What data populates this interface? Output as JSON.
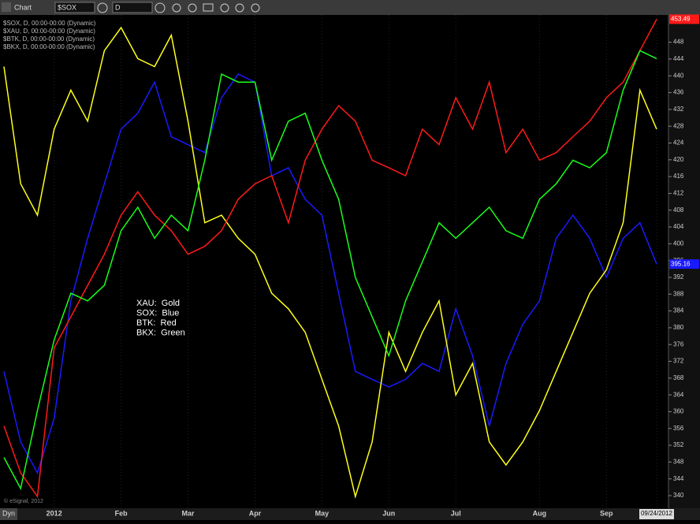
{
  "toolbar": {
    "window_title": "Chart",
    "symbol": "$SOX",
    "interval": "D"
  },
  "footer": {
    "mode": "Dyn",
    "copyright": "© eSignal, 2012"
  },
  "chart_data": {
    "type": "line",
    "categories": [
      null,
      null,
      null,
      "2012",
      null,
      null,
      null,
      "Feb",
      null,
      null,
      null,
      "Mar",
      null,
      null,
      null,
      "Apr",
      null,
      null,
      null,
      "May",
      null,
      null,
      null,
      "Jun",
      null,
      null,
      null,
      "Jul",
      null,
      null,
      null,
      null,
      "Aug",
      null,
      null,
      null,
      "Sep",
      null,
      null,
      "09/24/2012"
    ],
    "series": [
      {
        "name": "$SOX, D, 00:00-00:00 (Dynamic)",
        "color": "#1a1aff",
        "values": [
          369.6,
          352.8,
          345.4,
          358.4,
          386.4,
          401.3,
          414.3,
          427.3,
          431.1,
          438.5,
          425.5,
          423.6,
          421.7,
          434.8,
          440.4,
          438.5,
          416.2,
          418.1,
          410.6,
          406.8,
          388.2,
          369.6,
          367.7,
          365.9,
          367.7,
          371.5,
          369.6,
          384.5,
          373.3,
          356.6,
          371.5,
          380.8,
          386.4,
          401.3,
          406.8,
          401.3,
          392,
          401.3,
          405,
          395.16
        ]
      },
      {
        "name": "$XAU, D, 00:00-00:00 (Dynamic)",
        "color": "#ffff1a",
        "values": [
          442.2,
          414.3,
          406.8,
          427.3,
          436.6,
          429.2,
          446,
          451.5,
          444.1,
          442.2,
          449.7,
          429.2,
          405,
          406.8,
          401.3,
          397.5,
          388.2,
          384.5,
          378.9,
          367.7,
          356.6,
          339.8,
          352.8,
          378.9,
          369.6,
          378.9,
          386.4,
          364,
          371.5,
          352.8,
          347.3,
          352.8,
          360.3,
          369.6,
          378.9,
          388.2,
          393.8,
          405,
          436.6,
          427.3
        ]
      },
      {
        "name": "$BTK, D, 00:00-00:00 (Dynamic)",
        "color": "#ff1a1a",
        "values": [
          356.6,
          345.4,
          339.8,
          375.2,
          382.6,
          390.1,
          397.5,
          406.8,
          412.4,
          406.8,
          403.1,
          397.5,
          399.4,
          403.1,
          410.6,
          414.3,
          416.2,
          405,
          419.9,
          427.3,
          432.9,
          429.2,
          419.9,
          418.1,
          416.2,
          427.3,
          423.6,
          434.8,
          427.3,
          438.5,
          421.7,
          427.3,
          419.9,
          421.7,
          425.5,
          429.2,
          434.8,
          438.5,
          446,
          453.49
        ]
      },
      {
        "name": "$BKX, D, 00:00-00:00 (Dynamic)",
        "color": "#1aff1a",
        "values": [
          349.1,
          341.7,
          360.3,
          377.1,
          388.2,
          386.4,
          390.1,
          403.1,
          408.7,
          401.3,
          406.8,
          403.1,
          419.9,
          440.4,
          438.5,
          438.5,
          419.9,
          429.2,
          431.1,
          419.9,
          410.6,
          392,
          382.6,
          373.3,
          386.4,
          395.7,
          405,
          401.3,
          405,
          408.7,
          403.1,
          401.3,
          410.6,
          414.3,
          419.9,
          418.1,
          421.7,
          436.6,
          446,
          444.1
        ]
      }
    ],
    "annotations": [
      "XAU:  Gold",
      "SOX:  Blue",
      "BTK:  Red",
      "BKX:  Green"
    ],
    "ylim": [
      337,
      454.5
    ],
    "yticks": [
      340,
      344,
      348,
      352,
      356,
      360,
      364,
      368,
      372,
      376,
      380,
      384,
      388,
      392,
      396,
      400,
      404,
      408,
      412,
      416,
      420,
      424,
      428,
      432,
      436,
      440,
      444,
      448
    ],
    "grid": false
  }
}
